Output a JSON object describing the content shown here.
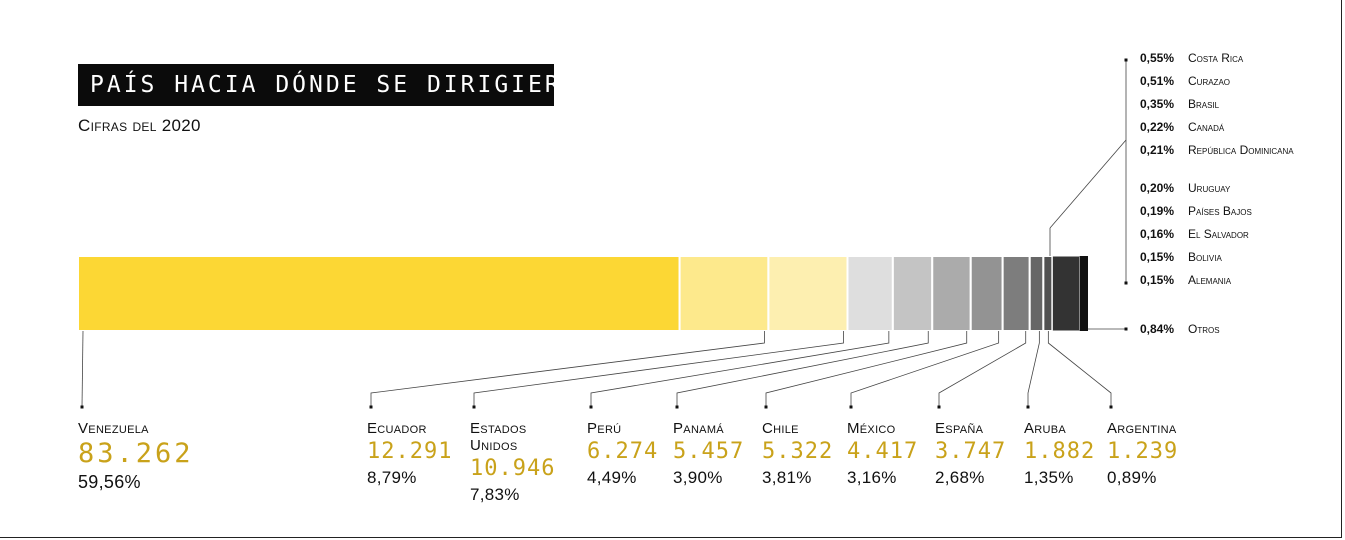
{
  "header": {
    "title": "PAÍS HACIA DÓNDE SE DIRIGIERON",
    "subtitle": "Cifras del 2020"
  },
  "chart_data": {
    "type": "bar",
    "orientation": "stacked-horizontal",
    "title": "PAÍS HACIA DÓNDE SE DIRIGIERON",
    "subtitle": "Cifras del 2020",
    "categories": [
      "Venezuela",
      "Ecuador",
      "Estados Unidos",
      "Perú",
      "Panamá",
      "Chile",
      "México",
      "España",
      "Aruba",
      "Argentina",
      "Alemania",
      "Bolivia",
      "El Salvador",
      "Países Bajos",
      "Uruguay",
      "República Dominicana",
      "Canadá",
      "Brasil",
      "Curazao",
      "Costa Rica",
      "Otros"
    ],
    "main": [
      {
        "name": "Venezuela",
        "value_label": "83.262",
        "pct_label": "59,56%",
        "pct": 59.56,
        "color": "#fcd734"
      },
      {
        "name": "Ecuador",
        "value_label": "12.291",
        "pct_label": "8,79%",
        "pct": 8.79,
        "color": "#fde98c"
      },
      {
        "name": "Estados Unidos",
        "value_label": "10.946",
        "pct_label": "7,83%",
        "pct": 7.83,
        "color": "#fdefb0"
      },
      {
        "name": "Perú",
        "value_label": "6.274",
        "pct_label": "4,49%",
        "pct": 4.49,
        "color": "#dedede"
      },
      {
        "name": "Panamá",
        "value_label": "5.457",
        "pct_label": "3,90%",
        "pct": 3.9,
        "color": "#c4c4c4"
      },
      {
        "name": "Chile",
        "value_label": "5.322",
        "pct_label": "3,81%",
        "pct": 3.81,
        "color": "#ababab"
      },
      {
        "name": "México",
        "value_label": "4.417",
        "pct_label": "3,16%",
        "pct": 3.16,
        "color": "#939393"
      },
      {
        "name": "España",
        "value_label": "3.747",
        "pct_label": "2,68%",
        "pct": 2.68,
        "color": "#7d7d7d"
      },
      {
        "name": "Aruba",
        "value_label": "1.882",
        "pct_label": "1,35%",
        "pct": 1.35,
        "color": "#666666"
      },
      {
        "name": "Argentina",
        "value_label": "1.239",
        "pct_label": "0,89%",
        "pct": 0.89,
        "color": "#525252"
      }
    ],
    "small": [
      {
        "name": "Costa Rica",
        "pct_label": "0,55%",
        "pct": 0.55
      },
      {
        "name": "Curazao",
        "pct_label": "0,51%",
        "pct": 0.51
      },
      {
        "name": "Brasil",
        "pct_label": "0,35%",
        "pct": 0.35
      },
      {
        "name": "Canadá",
        "pct_label": "0,22%",
        "pct": 0.22
      },
      {
        "name": "República Dominicana",
        "pct_label": "0,21%",
        "pct": 0.21
      },
      {
        "name": "Uruguay",
        "pct_label": "0,20%",
        "pct": 0.2
      },
      {
        "name": "Países Bajos",
        "pct_label": "0,19%",
        "pct": 0.19
      },
      {
        "name": "El Salvador",
        "pct_label": "0,16%",
        "pct": 0.16
      },
      {
        "name": "Bolivia",
        "pct_label": "0,15%",
        "pct": 0.15
      },
      {
        "name": "Alemania",
        "pct_label": "0,15%",
        "pct": 0.15
      }
    ],
    "others": {
      "name": "Otros",
      "pct_label": "0,84%",
      "pct": 0.84
    },
    "colors": {
      "accent_value": "#c9a21a",
      "small_group": "#333333",
      "others": "#111111"
    }
  }
}
